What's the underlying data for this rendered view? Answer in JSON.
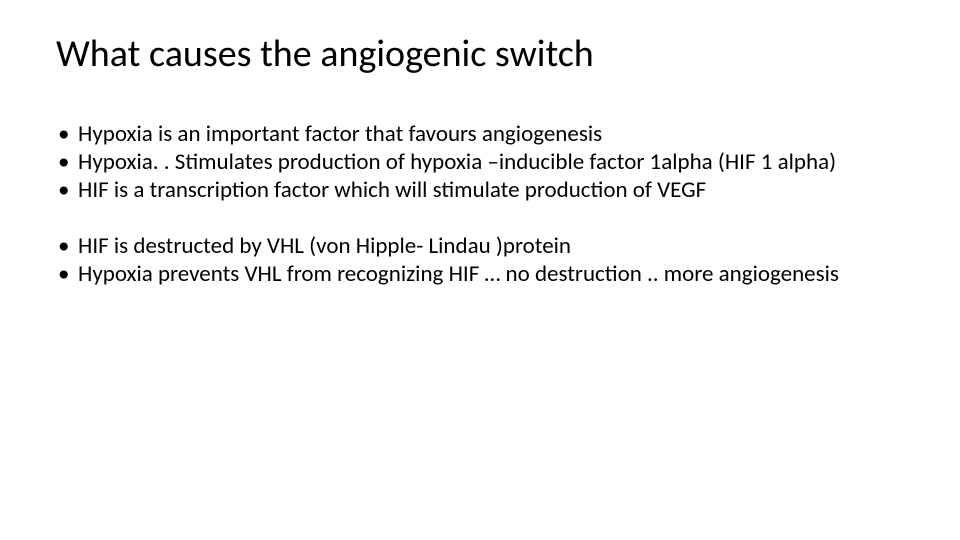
{
  "title": "What causes the angiogenic switch",
  "group1": [
    "Hypoxia is an important factor that favours angiogenesis",
    "Hypoxia. . Stimulates production of hypoxia –inducible factor 1alpha (HIF 1 alpha)",
    "HIF is a transcription factor which will stimulate production of VEGF"
  ],
  "group2": [
    "HIF is destructed by VHL (von Hipple- Lindau )protein",
    "Hypoxia prevents VHL from recognizing HIF … no destruction .. more angiogenesis"
  ],
  "colors": {
    "text": "#000000",
    "background": "#ffffff"
  },
  "typography": {
    "title_fontsize": 38,
    "body_fontsize": 23,
    "font_family": "Calibri"
  }
}
